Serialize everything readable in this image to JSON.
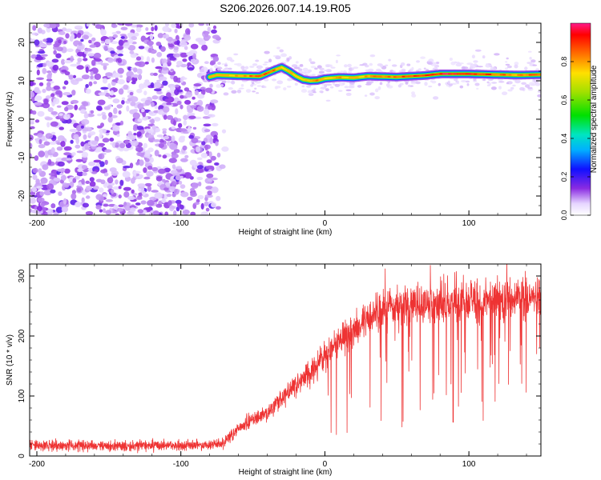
{
  "title": "S206.2026.007.14.19.R05",
  "colors": {
    "snr_line": "#ee3333",
    "axis": "#000000",
    "background": "#ffffff"
  },
  "chart_data": [
    {
      "type": "heatmap",
      "name": "spectrogram",
      "xlabel": "Height of straight line (km)",
      "ylabel": "Frequency (Hz)",
      "xlim": [
        -205,
        150
      ],
      "ylim": [
        -25,
        25
      ],
      "xticks": [
        -200,
        -100,
        0,
        100
      ],
      "yticks": [
        -20,
        -10,
        0,
        10,
        20
      ],
      "noise_region_km": [
        -205,
        -75
      ],
      "signal_ridge": {
        "x": [
          -80,
          -75,
          -60,
          -45,
          -35,
          -30,
          -25,
          -20,
          -15,
          -10,
          -5,
          0,
          10,
          20,
          30,
          50,
          70,
          80,
          100,
          120,
          135,
          150
        ],
        "freq_hz": [
          11,
          11.5,
          11.3,
          11.2,
          12.8,
          13.5,
          12.5,
          11.2,
          10.3,
          10.0,
          10.1,
          10.6,
          10.9,
          10.8,
          11.2,
          11.0,
          11.4,
          11.8,
          11.8,
          11.6,
          11.5,
          11.6
        ],
        "amplitude": [
          0.5,
          0.6,
          0.85,
          0.9,
          0.9,
          0.75,
          0.8,
          0.85,
          0.7,
          0.85,
          0.85,
          0.8,
          0.85,
          0.7,
          0.85,
          0.9,
          0.95,
          1.0,
          1.0,
          0.9,
          0.85,
          0.95
        ]
      },
      "colorbar": {
        "label": "Normalized spectral amplitude",
        "range": [
          0.0,
          1.0
        ],
        "ticks": [
          "0.0",
          "0.2",
          "0.4",
          "0.6",
          "0.8"
        ],
        "tick_values": [
          0.0,
          0.2,
          0.4,
          0.6,
          0.8
        ]
      }
    },
    {
      "type": "line",
      "name": "snr",
      "xlabel": "Height of straight line (km)",
      "ylabel": "SNR (10 * v/v)",
      "xlim": [
        -205,
        150
      ],
      "ylim": [
        0,
        320
      ],
      "xticks": [
        -200,
        -100,
        0,
        100
      ],
      "yticks": [
        0,
        100,
        200,
        300
      ],
      "series": [
        {
          "name": "SNR",
          "x": [
            -205,
            -150,
            -100,
            -80,
            -70,
            -65,
            -55,
            -40,
            -30,
            -20,
            -10,
            0,
            10,
            20,
            30,
            40,
            50,
            70,
            90,
            110,
            130,
            150
          ],
          "mean": [
            17,
            17,
            18,
            19,
            21,
            35,
            55,
            72,
            95,
            118,
            140,
            165,
            190,
            210,
            232,
            245,
            250,
            252,
            255,
            258,
            262,
            265
          ]
        }
      ]
    }
  ]
}
